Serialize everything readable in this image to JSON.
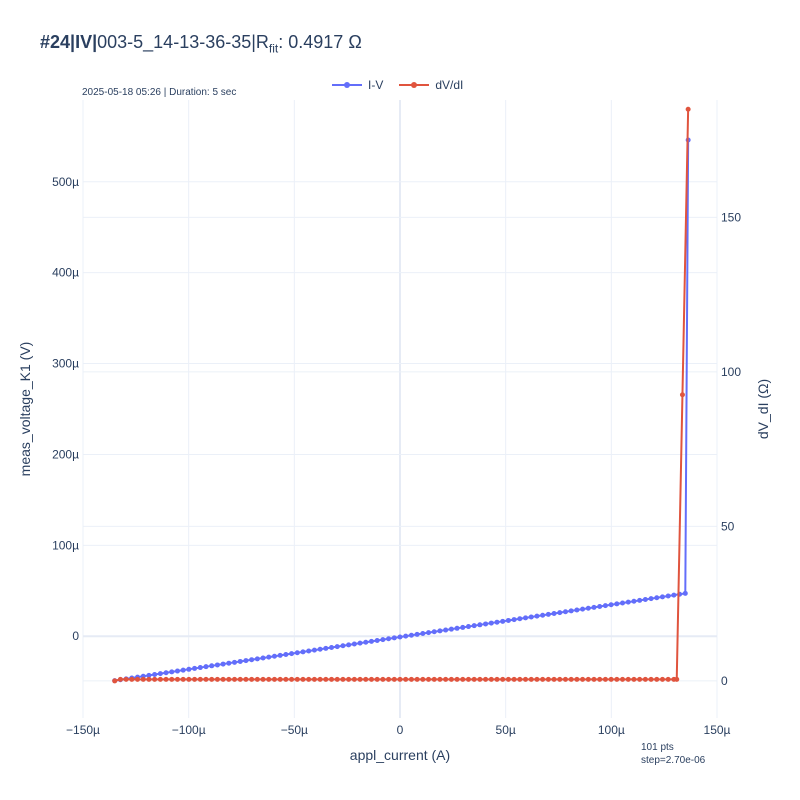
{
  "header": {
    "title_prefix": "#24|IV|",
    "title_name": "003-5_14-13-36-35|R",
    "title_sub": "fit",
    "title_suffix": ": 0.4917 Ω",
    "subtitle": "2025-05-18 05:26 | Duration: 5 sec",
    "footnote_line1": "101 pts",
    "footnote_line2": "step=2.70e-06"
  },
  "legend": {
    "iv_label": "I-V",
    "dvdi_label": "dV/dI"
  },
  "colors": {
    "iv": "#636efa",
    "dvdi": "#e0543e",
    "grid": "#ebf0f8",
    "zeroline": "#e6ebf5"
  },
  "chart_data": {
    "type": "line",
    "xlabel": "appl_current (A)",
    "ylabel": "meas_voltage_K1 (V)",
    "y2label": "dV_dI (Ω)",
    "grid": true,
    "legend_position": "top-center",
    "x_range": [
      -0.00015,
      0.00015
    ],
    "y_range": [
      -9e-05,
      0.00059
    ],
    "y2_range": [
      -12,
      188
    ],
    "x_ticks": [
      {
        "value": -0.00015,
        "label": "−150µ"
      },
      {
        "value": -0.0001,
        "label": "−100µ"
      },
      {
        "value": -5e-05,
        "label": "−50µ"
      },
      {
        "value": 0,
        "label": "0"
      },
      {
        "value": 5e-05,
        "label": "50µ"
      },
      {
        "value": 0.0001,
        "label": "100µ"
      },
      {
        "value": 0.00015,
        "label": "150µ"
      }
    ],
    "y_ticks": [
      {
        "value": 0,
        "label": "0"
      },
      {
        "value": 0.0001,
        "label": "100µ"
      },
      {
        "value": 0.0002,
        "label": "200µ"
      },
      {
        "value": 0.0003,
        "label": "300µ"
      },
      {
        "value": 0.0004,
        "label": "400µ"
      },
      {
        "value": 0.0005,
        "label": "500µ"
      }
    ],
    "y2_ticks": [
      {
        "value": 0,
        "label": "0"
      },
      {
        "value": 50,
        "label": "50"
      },
      {
        "value": 100,
        "label": "100"
      },
      {
        "value": 150,
        "label": "150"
      }
    ],
    "series": [
      {
        "name": "I-V",
        "axis": "y",
        "linear_segment": {
          "x_start": -0.000135,
          "x_end": 0.000135,
          "points": 101,
          "slope_ohm": 0.3555,
          "offset_v": -9e-07
        },
        "extra_points": [
          {
            "x": 0.00013635,
            "y": 0.000546
          }
        ]
      },
      {
        "name": "dV/dI",
        "axis": "y2",
        "x_start": -0.000135,
        "x_end": 0.000135,
        "points": 101,
        "baseline_value": 0.5,
        "tail_points": [
          {
            "x": 0.00013095,
            "y": 0.5
          },
          {
            "x": 0.00013365,
            "y": 92.6
          },
          {
            "x": 0.00013635,
            "y": 185
          }
        ],
        "first_points": [
          {
            "x": -0.000135,
            "y": 0.0
          }
        ]
      }
    ]
  }
}
